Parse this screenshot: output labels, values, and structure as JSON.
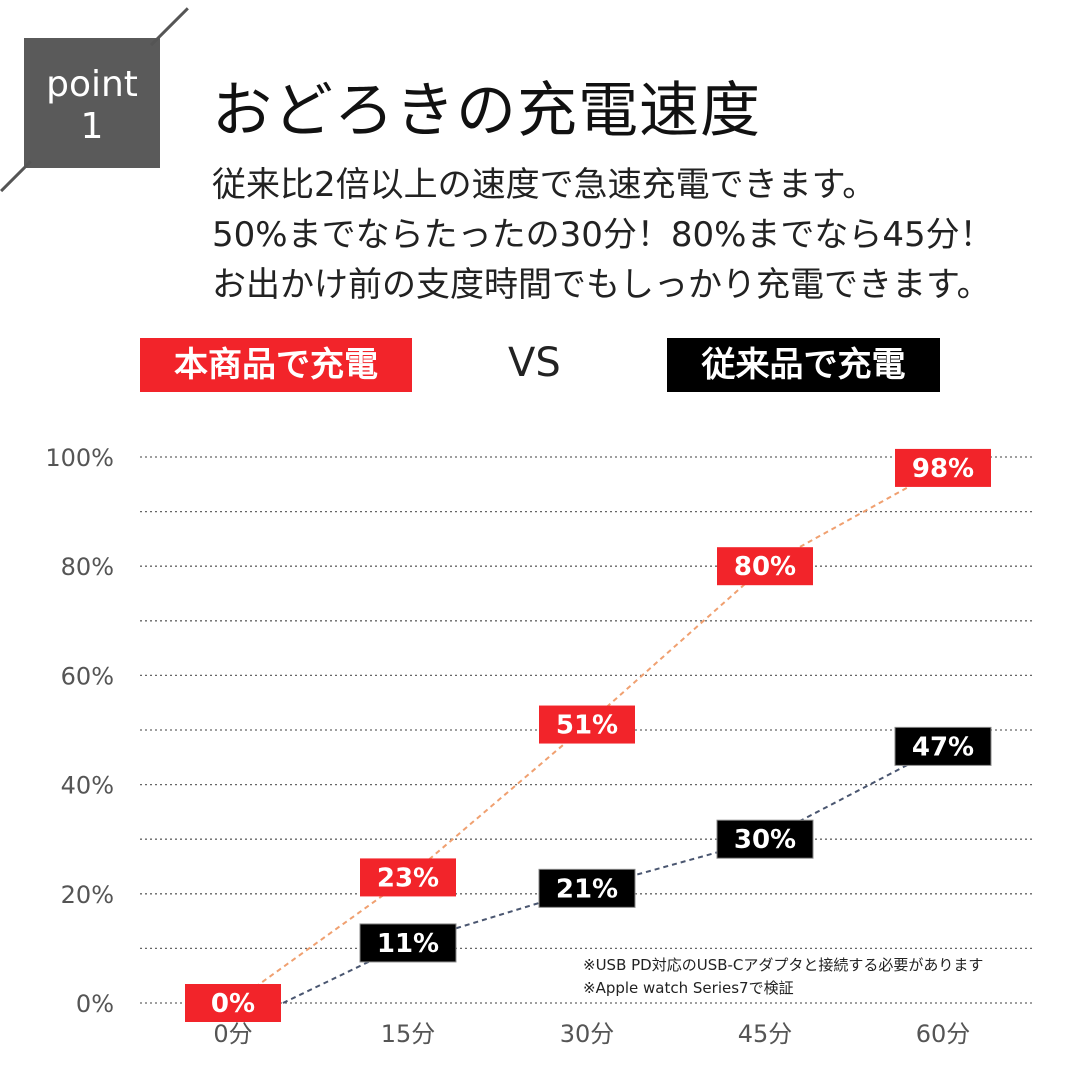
{
  "header": {
    "badge_word": "point",
    "badge_number": "1",
    "title": "おどろきの充電速度",
    "lead": [
      "従来比2倍以上の速度で急速充電できます。",
      "50%までならたったの30分！80%までなら45分！",
      "お出かけ前の支度時間でもしっかり充電できます。"
    ]
  },
  "legend": {
    "product_label": "本商品で充電",
    "vs_label": "VS",
    "conventional_label": "従来品で充電"
  },
  "colors": {
    "product": "#f2242a",
    "conventional": "#000000",
    "product_line": "#f0a070",
    "conventional_line": "#4a5670",
    "grid": "#666666"
  },
  "chart_data": {
    "type": "line",
    "categories": [
      "0分",
      "15分",
      "30分",
      "45分",
      "60分"
    ],
    "y_ticks": [
      "0%",
      "20%",
      "40%",
      "60%",
      "80%",
      "100%"
    ],
    "ylim": [
      0,
      100
    ],
    "grid": true,
    "series": [
      {
        "name": "本商品で充電",
        "values": [
          0,
          23,
          51,
          80,
          98
        ],
        "labels": [
          "0%",
          "23%",
          "51%",
          "80%",
          "98%"
        ]
      },
      {
        "name": "従来品で充電",
        "values": [
          null,
          11,
          21,
          30,
          47
        ],
        "labels": [
          "",
          "11%",
          "21%",
          "30%",
          "47%"
        ]
      }
    ],
    "notes": [
      "※USB PD対応のUSB-Cアダプタと接続する必要があります",
      "※Apple watch Series7で検証"
    ]
  }
}
